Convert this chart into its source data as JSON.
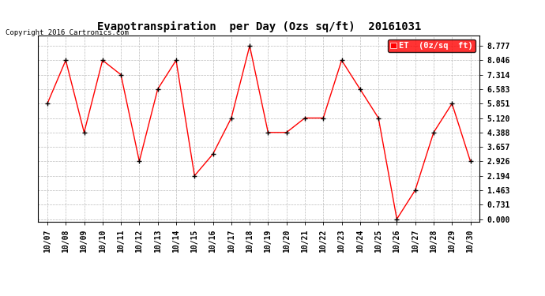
{
  "title": "Evapotranspiration  per Day (Ozs sq/ft)  20161031",
  "copyright_text": "Copyright 2016 Cartronics.com",
  "legend_label": "ET  (0z/sq  ft)",
  "x_labels": [
    "10/07",
    "10/08",
    "10/09",
    "10/10",
    "10/11",
    "10/12",
    "10/13",
    "10/14",
    "10/15",
    "10/16",
    "10/17",
    "10/18",
    "10/19",
    "10/20",
    "10/21",
    "10/22",
    "10/23",
    "10/24",
    "10/25",
    "10/26",
    "10/27",
    "10/28",
    "10/29",
    "10/30"
  ],
  "y_values": [
    5.851,
    8.046,
    4.388,
    8.046,
    7.314,
    2.926,
    6.583,
    8.046,
    2.194,
    3.291,
    5.12,
    8.777,
    4.388,
    4.388,
    5.12,
    5.12,
    8.046,
    6.583,
    5.12,
    0.0,
    1.463,
    4.388,
    5.851,
    2.926
  ],
  "y_ticks": [
    0.0,
    0.731,
    1.463,
    2.194,
    2.926,
    3.657,
    4.388,
    5.12,
    5.851,
    6.583,
    7.314,
    8.046,
    8.777
  ],
  "ylim": [
    -0.15,
    9.3
  ],
  "line_color": "red",
  "marker_color": "black",
  "bg_color": "#ffffff",
  "grid_color": "#bbbbbb",
  "title_fontsize": 10,
  "tick_fontsize": 7,
  "copyright_fontsize": 6.5,
  "legend_bg": "red",
  "legend_text_color": "white",
  "legend_fontsize": 7.5
}
